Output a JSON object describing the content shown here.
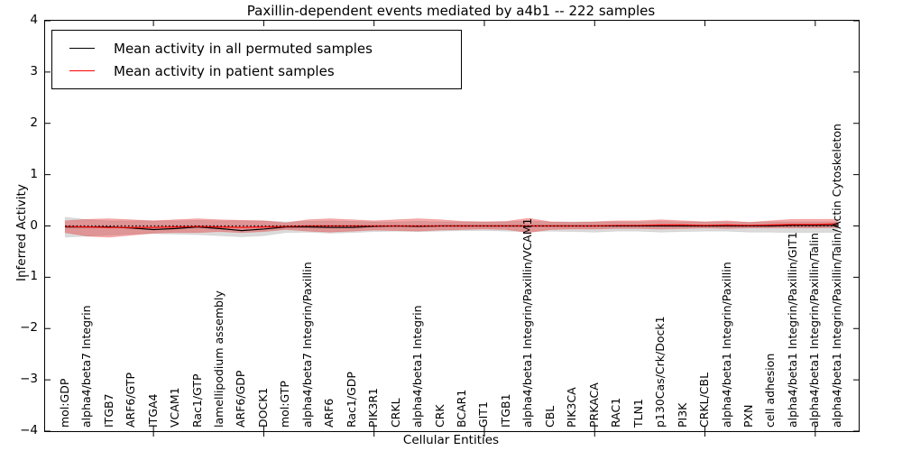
{
  "chart_data": {
    "type": "line",
    "title": "Paxillin-dependent events mediated by a4b1 -- 222 samples",
    "xlabel": "Cellular Entities",
    "ylabel": "Inferred Activity",
    "ylim": [
      -4,
      4
    ],
    "yticks": [
      4,
      3,
      2,
      1,
      0,
      -1,
      -2,
      -3,
      -4
    ],
    "xtick_positions": [
      4,
      9,
      14,
      19,
      24,
      29,
      34
    ],
    "grid": false,
    "legend_position": "upper left",
    "zero_line": 0,
    "categories": [
      "mol:GDP",
      "alpha4/beta7 Integrin",
      "ITGB7",
      "ARF6/GTP",
      "ITGA4",
      "VCAM1",
      "Rac1/GTP",
      "lamellipodium assembly",
      "ARF6/GDP",
      "DOCK1",
      "mol:GTP",
      "alpha4/beta7 Integrin/Paxillin",
      "ARF6",
      "Rac1/GDP",
      "PIK3R1",
      "CRKL",
      "alpha4/beta1 Integrin",
      "CRK",
      "BCAR1",
      "GIT1",
      "ITGB1",
      "alpha4/beta1 Integrin/Paxillin/VCAM1",
      "CBL",
      "PIK3CA",
      "PRKACA",
      "RAC1",
      "TLN1",
      "p130Cas/Crk/Dock1",
      "PI3K",
      "CRKL/CBL",
      "alpha4/beta1 Integrin/Paxillin",
      "PXN",
      "cell adhesion",
      "alpha4/beta1 Integrin/Paxillin/GIT1",
      "alpha4/beta1 Integrin/Paxillin/Talin",
      "alpha4/beta1 Integrin/Paxillin/Talin/Actin Cytoskeleton"
    ],
    "series": [
      {
        "name": "Mean activity in all permuted samples",
        "color": "#000000",
        "values": [
          -0.02,
          -0.02,
          -0.02,
          -0.04,
          -0.07,
          -0.05,
          -0.02,
          -0.05,
          -0.09,
          -0.06,
          -0.02,
          -0.02,
          -0.03,
          -0.03,
          -0.01,
          0,
          -0.01,
          0,
          0,
          0,
          0,
          0,
          0,
          0,
          0,
          0,
          0,
          0,
          0,
          0,
          0,
          0,
          0,
          0.01,
          0.01,
          0.01
        ]
      },
      {
        "name": "Mean activity in patient samples",
        "color": "#ff0000",
        "values": [
          -0.01,
          -0.02,
          -0.03,
          -0.03,
          -0.03,
          -0.02,
          -0.01,
          -0.02,
          -0.03,
          -0.02,
          -0.01,
          0,
          0,
          0,
          0,
          0,
          0,
          0,
          0,
          0,
          0,
          0,
          0,
          0,
          0,
          0.01,
          0.01,
          0.02,
          0.02,
          0.01,
          0.02,
          0.01,
          0.02,
          0.03,
          0.03,
          0.04
        ]
      }
    ],
    "bands": [
      {
        "name": "permuted samples range",
        "color": "#000000",
        "opacity": 0.14,
        "upper": [
          0.17,
          0.12,
          0.1,
          0.1,
          0.1,
          0.1,
          0.11,
          0.1,
          0.1,
          0.1,
          0.08,
          0.09,
          0.1,
          0.09,
          0.08,
          0.08,
          0.09,
          0.08,
          0.08,
          0.08,
          0.08,
          0.1,
          0.08,
          0.08,
          0.08,
          0.08,
          0.08,
          0.09,
          0.08,
          0.08,
          0.08,
          0.07,
          0.08,
          0.08,
          0.08,
          0.08
        ],
        "lower": [
          -0.22,
          -0.2,
          -0.18,
          -0.16,
          -0.15,
          -0.16,
          -0.17,
          -0.19,
          -0.21,
          -0.19,
          -0.13,
          -0.12,
          -0.14,
          -0.13,
          -0.11,
          -0.1,
          -0.11,
          -0.1,
          -0.09,
          -0.09,
          -0.1,
          -0.11,
          -0.1,
          -0.11,
          -0.12,
          -0.1,
          -0.1,
          -0.12,
          -0.11,
          -0.1,
          -0.1,
          -0.12,
          -0.12,
          -0.13,
          -0.13,
          -0.12
        ]
      },
      {
        "name": "patient samples range",
        "color": "#e62222",
        "opacity": 0.38,
        "upper": [
          0.1,
          0.13,
          0.14,
          0.12,
          0.1,
          0.12,
          0.14,
          0.12,
          0.11,
          0.1,
          0.06,
          0.12,
          0.14,
          0.12,
          0.1,
          0.12,
          0.14,
          0.12,
          0.09,
          0.08,
          0.09,
          0.15,
          0.08,
          0.07,
          0.08,
          0.1,
          0.1,
          0.12,
          0.1,
          0.08,
          0.1,
          0.07,
          0.1,
          0.13,
          0.13,
          0.13
        ],
        "lower": [
          -0.13,
          -0.2,
          -0.22,
          -0.18,
          -0.14,
          -0.13,
          -0.13,
          -0.11,
          -0.13,
          -0.11,
          -0.07,
          -0.1,
          -0.12,
          -0.1,
          -0.08,
          -0.09,
          -0.1,
          -0.08,
          -0.07,
          -0.06,
          -0.07,
          -0.13,
          -0.07,
          -0.06,
          -0.06,
          -0.05,
          -0.05,
          -0.06,
          -0.05,
          -0.04,
          -0.05,
          -0.04,
          -0.04,
          -0.04,
          -0.04,
          -0.03
        ]
      }
    ]
  }
}
